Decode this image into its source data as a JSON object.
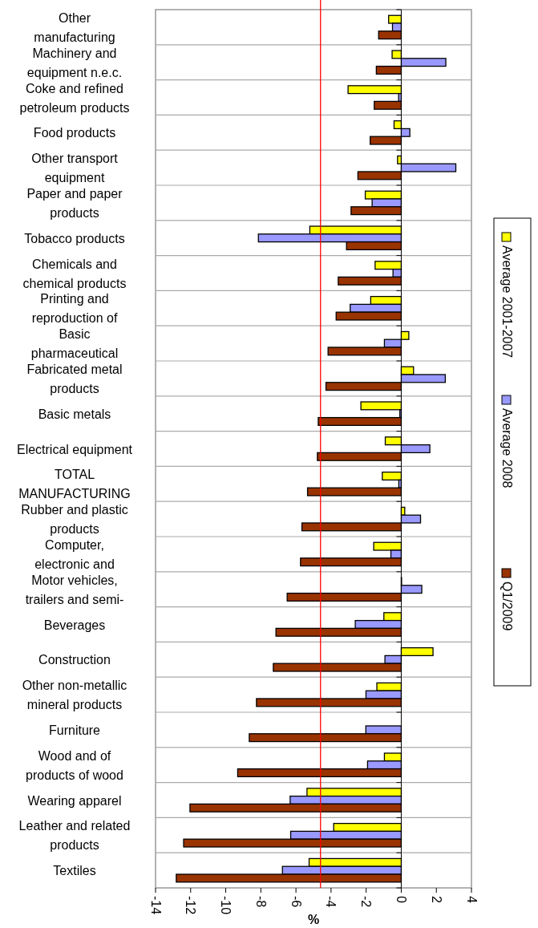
{
  "chart_data": {
    "type": "bar",
    "orientation": "horizontal",
    "xlabel": "%",
    "categories": [
      "Other\nmanufacturing",
      "Machinery and\nequipment n.e.c.",
      "Coke and refined\npetroleum products",
      "Food products",
      "Other transport\nequipment",
      "Paper and paper\nproducts",
      "Tobacco products",
      "Chemicals and\nchemical products",
      "Printing and\nreproduction of",
      "Basic\npharmaceutical",
      "Fabricated metal\nproducts",
      "Basic metals",
      "Electrical equipment",
      "TOTAL\nMANUFACTURING",
      "Rubber and plastic\nproducts",
      "Computer,\nelectronic and",
      "Motor vehicles,\ntrailers and semi-",
      "Beverages",
      "Construction",
      "Other non-metallic\nmineral products",
      "Furniture",
      "Wood and of\nproducts of wood",
      "Wearing apparel",
      "Leather and related\nproducts",
      "Textiles"
    ],
    "series": [
      {
        "name": "Average 2001-2007",
        "color": "#ffff00",
        "values": [
          -0.72,
          -0.52,
          -3.03,
          -0.41,
          -0.21,
          -2.05,
          -5.21,
          -1.49,
          -1.74,
          0.43,
          0.7,
          -2.3,
          -0.91,
          -1.08,
          0.2,
          -1.57,
          0.02,
          -0.99,
          1.81,
          -1.39,
          null,
          -0.96,
          -5.37,
          -3.85,
          -5.25
        ]
      },
      {
        "name": "Average 2008",
        "color": "#9999ff",
        "values": [
          -0.5,
          2.54,
          -0.15,
          0.49,
          3.11,
          -1.66,
          -8.14,
          -0.47,
          -2.91,
          -0.96,
          2.51,
          -0.08,
          1.63,
          -0.14,
          1.1,
          -0.59,
          1.17,
          -2.62,
          -0.93,
          -2.01,
          -2.02,
          -1.92,
          -6.33,
          -6.3,
          -6.77
        ]
      },
      {
        "name": "Q1/2009",
        "color": "#993300",
        "values": [
          -1.29,
          -1.42,
          -1.54,
          -1.77,
          -2.47,
          -2.86,
          -3.12,
          -3.59,
          -3.71,
          -4.17,
          -4.29,
          -4.73,
          -4.78,
          -5.34,
          -5.66,
          -5.74,
          -6.5,
          -7.14,
          -7.29,
          -8.25,
          -8.66,
          -9.32,
          -12.04,
          -12.4,
          -12.82
        ]
      }
    ],
    "xlim": [
      -14,
      4
    ],
    "xticks": [
      -14,
      -12,
      -10,
      -8,
      -6,
      -4,
      -2,
      0,
      2,
      4
    ],
    "ref_lines": [
      {
        "axis": "x",
        "value": -4.6,
        "color": "#ff0000"
      }
    ],
    "grid": "y",
    "legend": "right"
  }
}
